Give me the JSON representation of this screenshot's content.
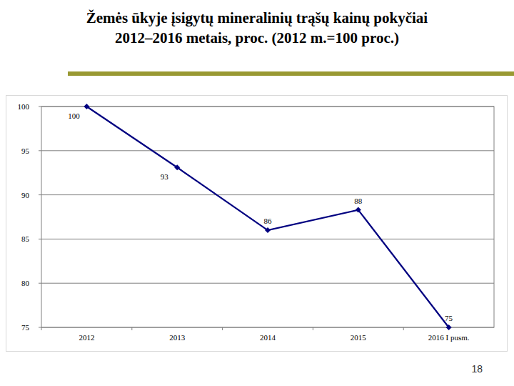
{
  "chart_data": {
    "type": "line",
    "title": "Žemės ūkyje įsigytų mineralinių trąšų kainų pokyčiai\n2012–2016 metais, proc.  (2012 m.=100 proc.)",
    "categories": [
      "2012",
      "2013",
      "2014",
      "2015",
      "2016 I pusm."
    ],
    "values": [
      100,
      93.1,
      86,
      88.3,
      75
    ],
    "value_labels": [
      "100",
      "93",
      "86",
      "88",
      "75"
    ],
    "color": "#000080",
    "marker": "diamond",
    "ylim": [
      75,
      100
    ],
    "yticks": [
      75,
      80,
      85,
      90,
      95,
      100
    ],
    "grid": true,
    "data_labels": true
  },
  "page_number": "18"
}
